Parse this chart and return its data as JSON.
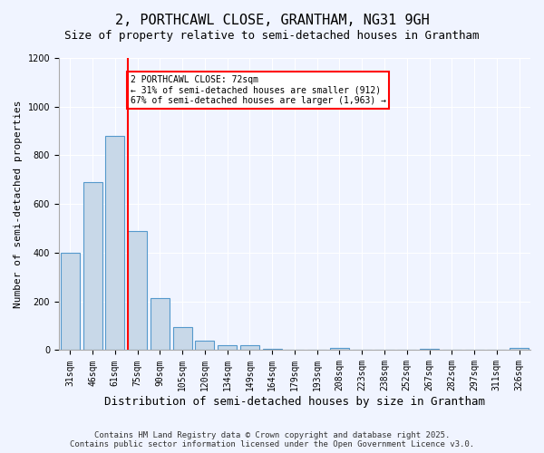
{
  "title1": "2, PORTHCAWL CLOSE, GRANTHAM, NG31 9GH",
  "title2": "Size of property relative to semi-detached houses in Grantham",
  "xlabel": "Distribution of semi-detached houses by size in Grantham",
  "ylabel": "Number of semi-detached properties",
  "categories": [
    "31sqm",
    "46sqm",
    "61sqm",
    "75sqm",
    "90sqm",
    "105sqm",
    "120sqm",
    "134sqm",
    "149sqm",
    "164sqm",
    "179sqm",
    "193sqm",
    "208sqm",
    "223sqm",
    "238sqm",
    "252sqm",
    "267sqm",
    "282sqm",
    "297sqm",
    "311sqm",
    "326sqm"
  ],
  "values": [
    400,
    690,
    880,
    490,
    215,
    95,
    40,
    20,
    20,
    5,
    0,
    0,
    10,
    0,
    0,
    0,
    5,
    0,
    0,
    0,
    10
  ],
  "bar_color": "#c8d8e8",
  "bar_edge_color": "#5599cc",
  "red_line_x": 3,
  "annotation_text": "2 PORTHCAWL CLOSE: 72sqm\n← 31% of semi-detached houses are smaller (912)\n67% of semi-detached houses are larger (1,963) →",
  "annotation_box_color": "white",
  "annotation_box_edge": "red",
  "ylim": [
    0,
    1200
  ],
  "yticks": [
    0,
    200,
    400,
    600,
    800,
    1000,
    1200
  ],
  "footer": "Contains HM Land Registry data © Crown copyright and database right 2025.\nContains public sector information licensed under the Open Government Licence v3.0.",
  "background_color": "#f0f4ff",
  "grid_color": "white",
  "title1_fontsize": 11,
  "title2_fontsize": 9,
  "xlabel_fontsize": 9,
  "ylabel_fontsize": 8,
  "tick_fontsize": 7,
  "footer_fontsize": 6.5
}
